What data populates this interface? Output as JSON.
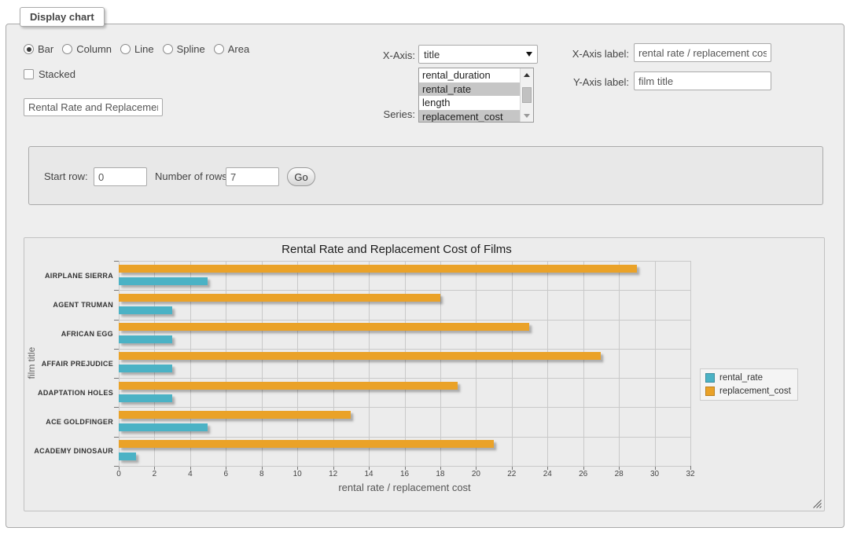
{
  "window": {
    "legend": "Display chart"
  },
  "controls": {
    "chart_types": [
      {
        "label": "Bar",
        "selected": true
      },
      {
        "label": "Column",
        "selected": false
      },
      {
        "label": "Line",
        "selected": false
      },
      {
        "label": "Spline",
        "selected": false
      },
      {
        "label": "Area",
        "selected": false
      }
    ],
    "stacked": {
      "label": "Stacked",
      "checked": false
    },
    "title_input": {
      "value": "Rental Rate and Replacemer"
    },
    "x_axis": {
      "label": "X-Axis:",
      "value": "title"
    },
    "series": {
      "label": "Series:",
      "options": [
        {
          "label": "rental_duration",
          "selected": false
        },
        {
          "label": "rental_rate",
          "selected": true
        },
        {
          "label": "length",
          "selected": false
        },
        {
          "label": "replacement_cost",
          "selected": true
        }
      ]
    },
    "x_axis_label": {
      "label": "X-Axis label:",
      "value": "rental rate / replacement cost"
    },
    "y_axis_label": {
      "label": "Y-Axis label:",
      "value": "film title"
    }
  },
  "pagination": {
    "start_row": {
      "label": "Start row:",
      "value": "0"
    },
    "num_rows": {
      "label": "Number of rows:",
      "value": "7"
    },
    "go_label": "Go"
  },
  "chart_data": {
    "type": "bar",
    "orientation": "horizontal",
    "title": "Rental Rate and Replacement Cost of Films",
    "categories": [
      "AIRPLANE SIERRA",
      "AGENT TRUMAN",
      "AFRICAN EGG",
      "AFFAIR PREJUDICE",
      "ADAPTATION HOLES",
      "ACE GOLDFINGER",
      "ACADEMY DINOSAUR"
    ],
    "series": [
      {
        "name": "rental_rate",
        "color": "#4bb2c5",
        "values": [
          4.99,
          2.99,
          2.99,
          2.99,
          2.99,
          4.99,
          0.99
        ]
      },
      {
        "name": "replacement_cost",
        "color": "#eaa228",
        "values": [
          28.99,
          17.99,
          22.99,
          26.99,
          18.99,
          12.99,
          20.99
        ]
      }
    ],
    "xlabel": "rental rate / replacement cost",
    "ylabel": "film title",
    "xlim": [
      0,
      32
    ],
    "xtick_step": 2,
    "grid": true,
    "legend_position": "right"
  }
}
